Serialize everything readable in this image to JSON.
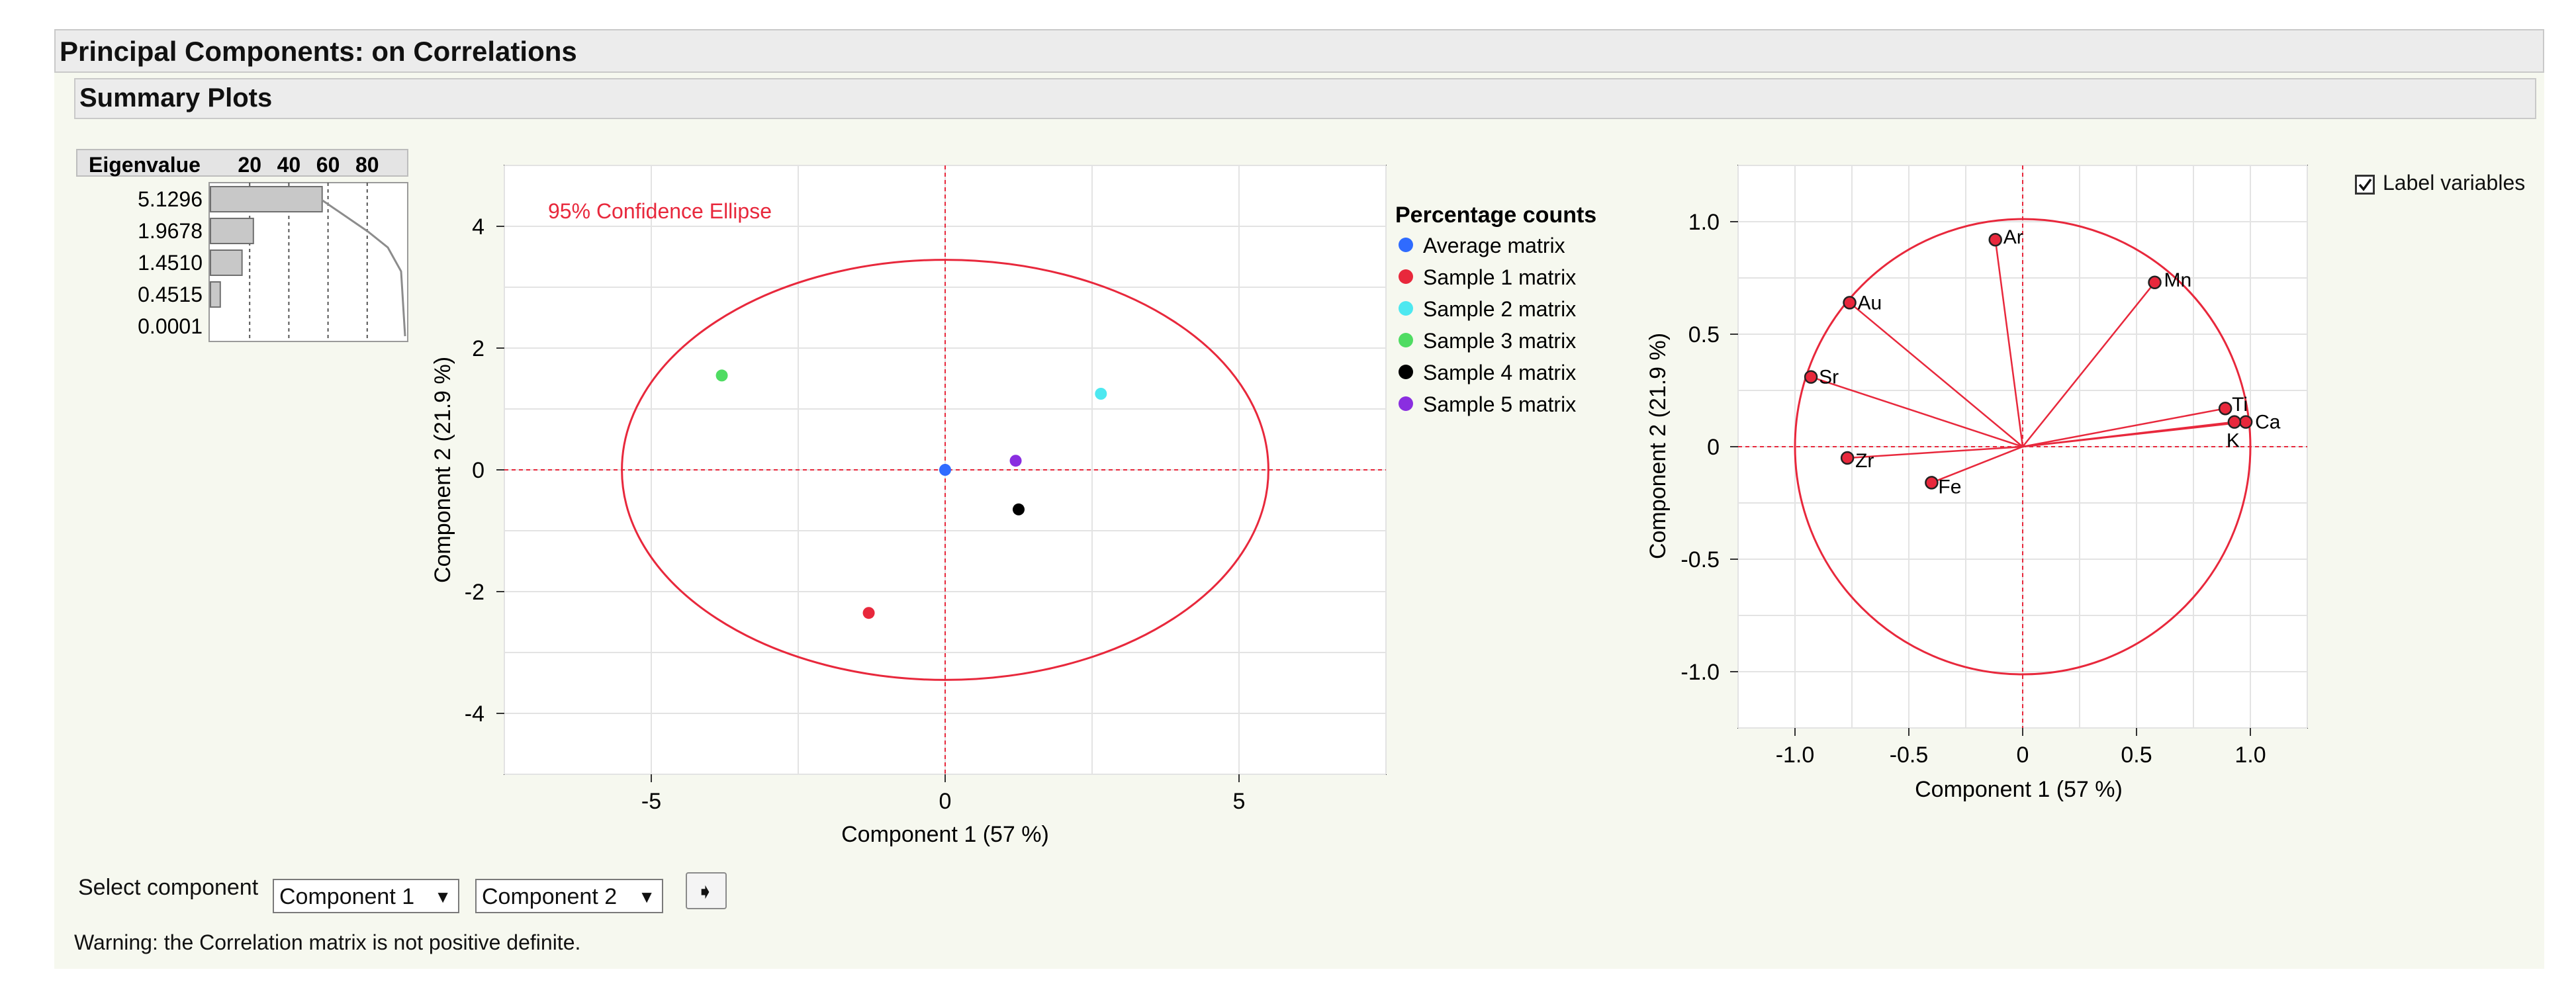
{
  "window": {
    "section_title": "Principal Components: on Correlations",
    "subsection_title": "Summary Plots"
  },
  "eigen": {
    "header": "Eigenvalue",
    "axis_ticks": [
      "20",
      "40",
      "60",
      "80"
    ],
    "values": [
      "5.1296",
      "1.9678",
      "1.4510",
      "0.4515",
      "0.0001"
    ],
    "percent_bars": [
      57.0,
      21.9,
      16.1,
      5.0,
      0.0
    ]
  },
  "score_plot": {
    "annotation": "95% Confidence Ellipse",
    "xlabel": "Component 1  (57 %)",
    "ylabel": "Component 2  (21.9 %)",
    "xticks": [
      "-5",
      "0",
      "5"
    ],
    "yticks": [
      "4",
      "2",
      "0",
      "-2",
      "-4"
    ]
  },
  "legend": {
    "title": "Percentage counts",
    "items": [
      {
        "label": "Average matrix",
        "color": "#2f6bff"
      },
      {
        "label": "Sample 1 matrix",
        "color": "#e8283c"
      },
      {
        "label": "Sample 2 matrix",
        "color": "#4de8f0"
      },
      {
        "label": "Sample 3 matrix",
        "color": "#4fdc62"
      },
      {
        "label": "Sample 4 matrix",
        "color": "#000000"
      },
      {
        "label": "Sample 5 matrix",
        "color": "#8a2ee0"
      }
    ]
  },
  "loading_plot": {
    "xlabel": "Component 1  (57 %)",
    "ylabel": "Component 2  (21.9 %)",
    "xticks": [
      "-1.0",
      "-0.5",
      "0",
      "0.5",
      "1.0"
    ],
    "yticks": [
      "1.0",
      "0.5",
      "0",
      "-0.5",
      "-1.0"
    ]
  },
  "options": {
    "label_variables": "Label variables",
    "label_variables_checked": true
  },
  "controls": {
    "select_component_label": "Select component",
    "component_x": "Component 1",
    "component_y": "Component 2"
  },
  "status": {
    "warning": "Warning: the Correlation matrix is not positive definite."
  },
  "chart_data": [
    {
      "type": "bar",
      "title": "Eigenvalue",
      "categories": [
        "5.1296",
        "1.9678",
        "1.4510",
        "0.4515",
        "0.0001"
      ],
      "values": [
        57.0,
        21.9,
        16.1,
        5.0,
        0.0
      ],
      "xlim": [
        0,
        100
      ],
      "xticks": [
        20,
        40,
        60,
        80
      ]
    },
    {
      "type": "scatter",
      "xlabel": "Component 1  (57 %)",
      "ylabel": "Component 2  (21.9 %)",
      "xlim": [
        -7.5,
        7.5
      ],
      "ylim": [
        -5,
        5
      ],
      "grid": true,
      "legend_title": "Percentage counts",
      "ellipse": {
        "label": "95% Confidence Ellipse",
        "cx": 0,
        "cy": 0,
        "rx": 5.5,
        "ry": 3.45
      },
      "series": [
        {
          "name": "Average matrix",
          "x": [
            0.0
          ],
          "y": [
            0.0
          ]
        },
        {
          "name": "Sample 1 matrix",
          "x": [
            -1.3
          ],
          "y": [
            -2.35
          ]
        },
        {
          "name": "Sample 2 matrix",
          "x": [
            2.65
          ],
          "y": [
            1.25
          ]
        },
        {
          "name": "Sample 3 matrix",
          "x": [
            -3.8
          ],
          "y": [
            1.55
          ]
        },
        {
          "name": "Sample 4 matrix",
          "x": [
            1.25
          ],
          "y": [
            -0.65
          ]
        },
        {
          "name": "Sample 5 matrix",
          "x": [
            1.2
          ],
          "y": [
            0.15
          ]
        }
      ]
    },
    {
      "type": "scatter",
      "xlabel": "Component 1  (57 %)",
      "ylabel": "Component 2  (21.9 %)",
      "xlim": [
        -1.25,
        1.25
      ],
      "ylim": [
        -1.25,
        1.25
      ],
      "grid": true,
      "points": [
        {
          "label": "Ar",
          "x": -0.12,
          "y": 0.92
        },
        {
          "label": "Mn",
          "x": 0.58,
          "y": 0.73
        },
        {
          "label": "Au",
          "x": -0.76,
          "y": 0.64
        },
        {
          "label": "Sr",
          "x": -0.93,
          "y": 0.31
        },
        {
          "label": "Ti",
          "x": 0.89,
          "y": 0.17
        },
        {
          "label": "Ca",
          "x": 0.98,
          "y": 0.11
        },
        {
          "label": "K",
          "x": 0.93,
          "y": 0.11
        },
        {
          "label": "Zr",
          "x": -0.77,
          "y": -0.05
        },
        {
          "label": "Fe",
          "x": -0.4,
          "y": -0.16
        }
      ]
    }
  ]
}
